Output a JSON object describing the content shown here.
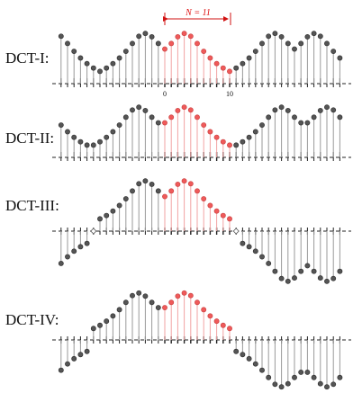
{
  "n_label": "N = 11",
  "axis_ticks": {
    "start": "0",
    "end": "10"
  },
  "colors": {
    "sample_black": "#555555",
    "sample_red": "#ef5a5a",
    "stem_black": "#9a9a9a",
    "stem_red": "#f2a3a3",
    "axis": "#222222",
    "arrow": "#d11111"
  },
  "n": 11,
  "panels": [
    {
      "label": "DCT-I:",
      "boundary": "even-even",
      "left_marker": false,
      "right_marker": false
    },
    {
      "label": "DCT-II:",
      "boundary": "half-even",
      "left_marker": false,
      "right_marker": false
    },
    {
      "label": "DCT-III:",
      "boundary": "even-odd",
      "left_marker": true,
      "right_marker": true
    },
    {
      "label": "DCT-IV:",
      "boundary": "half-odd",
      "left_marker": false,
      "right_marker": false
    }
  ],
  "samples": [
    0.62,
    0.72,
    0.84,
    0.9,
    0.85,
    0.72,
    0.58,
    0.46,
    0.36,
    0.28,
    0.22
  ]
}
